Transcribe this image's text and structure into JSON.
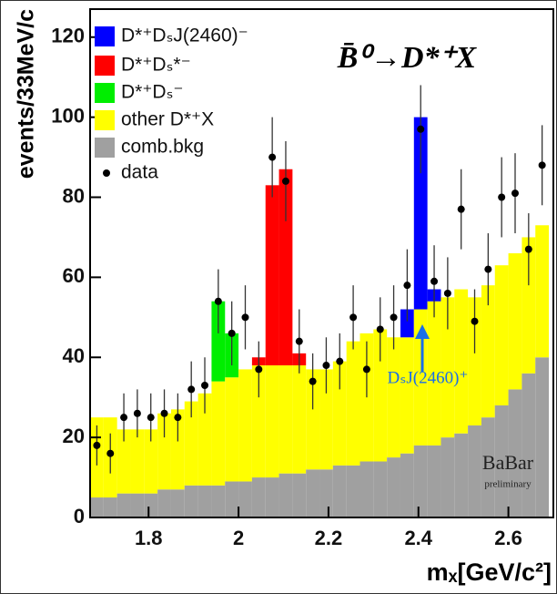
{
  "chart_data": {
    "type": "histogram",
    "title": "B̄⁰→D*⁺X",
    "x_label": "mₓ[GeV/c²]",
    "y_label": "events/33MeV/c",
    "annotations": [
      "DₛJ(2460)⁺",
      "BaBar",
      "preliminary"
    ],
    "bins": [
      1.67,
      1.7,
      1.73,
      1.76,
      1.79,
      1.82,
      1.85,
      1.88,
      1.91,
      1.94,
      1.97,
      2,
      2.03,
      2.06,
      2.09,
      2.12,
      2.15,
      2.18,
      2.21,
      2.24,
      2.27,
      2.3,
      2.33,
      2.36,
      2.39,
      2.42,
      2.45,
      2.48,
      2.51,
      2.54,
      2.57,
      2.6,
      2.63,
      2.66,
      2.69
    ],
    "stacked": true,
    "series": [
      {
        "name": "D*⁺DₛJ(2460)⁻",
        "color": "#0000ff",
        "values": [
          0,
          0,
          0,
          0,
          0,
          0,
          0,
          0,
          0,
          0,
          0,
          0,
          0,
          0,
          0,
          0,
          0,
          0,
          0,
          0,
          0,
          0,
          0,
          7,
          48,
          3,
          0,
          0,
          0,
          0,
          0,
          0,
          0,
          0
        ]
      },
      {
        "name": "D*⁺Dₛ*⁻",
        "color": "#ff0000",
        "values": [
          0,
          0,
          0,
          0,
          0,
          0,
          0,
          0,
          0,
          0,
          0,
          0,
          2,
          45,
          49,
          3,
          0,
          0,
          0,
          0,
          0,
          0,
          0,
          0,
          0,
          0,
          0,
          0,
          0,
          0,
          0,
          0,
          0,
          0
        ]
      },
      {
        "name": "D*⁺Dₛ⁻",
        "color": "#00ee00",
        "values": [
          0,
          0,
          0,
          0,
          0,
          0,
          0,
          0,
          0,
          20,
          11,
          0,
          0,
          0,
          0,
          0,
          0,
          0,
          0,
          0,
          0,
          0,
          0,
          0,
          0,
          0,
          0,
          0,
          0,
          0,
          0,
          0,
          0,
          0
        ]
      },
      {
        "name": "other D*⁺X",
        "color": "#ffff00",
        "values": [
          20,
          20,
          16,
          16,
          16,
          19,
          20,
          21,
          23,
          26,
          26,
          28,
          28,
          28,
          27,
          27,
          25,
          25,
          26,
          31,
          32,
          33,
          30,
          29,
          34,
          36,
          35,
          36,
          32,
          33,
          35,
          34,
          34,
          33
        ]
      },
      {
        "name": "comb.bkg",
        "color": "#a0a0a0",
        "values": [
          5,
          5,
          6,
          6,
          6,
          7,
          7,
          8,
          8,
          8,
          9,
          9,
          10,
          10,
          11,
          11,
          12,
          12,
          13,
          13,
          14,
          14,
          15,
          16,
          18,
          18,
          20,
          21,
          23,
          25,
          28,
          32,
          36,
          40
        ]
      }
    ],
    "data": {
      "name": "data",
      "color": "#000000",
      "values": [
        18,
        16,
        25,
        26,
        25,
        26,
        25,
        32,
        33,
        54,
        46,
        50,
        37,
        90,
        84,
        44,
        34,
        38,
        39,
        50,
        37,
        47,
        50,
        58,
        97,
        59,
        56,
        77,
        49,
        62,
        80,
        81,
        67,
        88
      ],
      "errors": [
        5,
        5,
        6,
        6,
        6,
        6,
        6,
        7,
        7,
        8,
        8,
        8,
        7,
        10,
        10,
        8,
        7,
        7,
        7,
        8,
        7,
        8,
        8,
        9,
        11,
        9,
        9,
        10,
        8,
        9,
        10,
        10,
        9,
        10
      ]
    },
    "xlim": [
      1.67,
      2.7
    ],
    "ylim": [
      0,
      127
    ],
    "xticks": [
      1.8,
      2,
      2.2,
      2.4,
      2.6
    ],
    "yticks": [
      0,
      20,
      40,
      60,
      80,
      100,
      120
    ]
  }
}
